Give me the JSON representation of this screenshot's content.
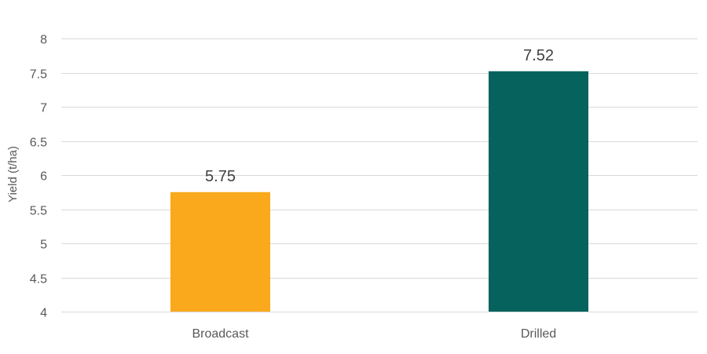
{
  "chart_data": {
    "type": "bar",
    "categories": [
      "Broadcast",
      "Drilled"
    ],
    "values": [
      5.75,
      7.52
    ],
    "data_labels": [
      "5.75",
      "7.52"
    ],
    "colors": [
      "#f9a91b",
      "#05625d"
    ],
    "title": "",
    "xlabel": "",
    "ylabel": "Yield (t/ha)",
    "ylim": [
      4,
      8
    ],
    "yticks": [
      4,
      4.5,
      5,
      5.5,
      6,
      6.5,
      7,
      7.5,
      8
    ],
    "ytick_labels": [
      "4",
      "4.5",
      "5",
      "5.5",
      "6",
      "6.5",
      "7",
      "7.5",
      "8"
    ],
    "grid": true,
    "grid_color": "#d9d9d9",
    "legend": "none"
  }
}
